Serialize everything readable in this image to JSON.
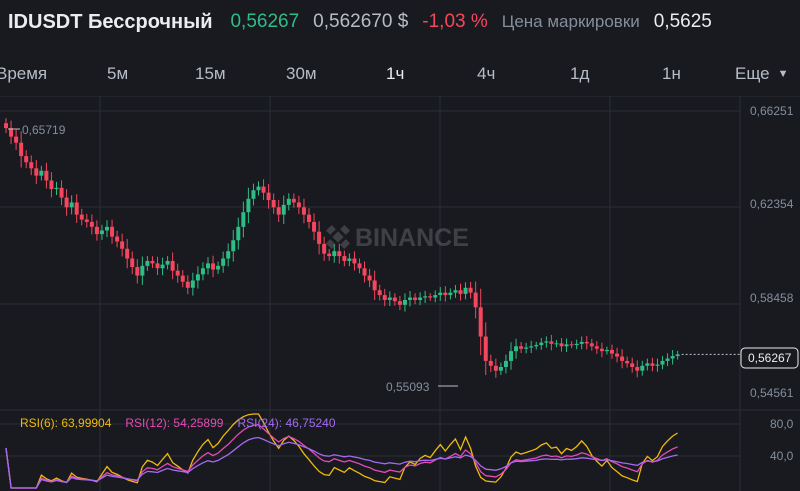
{
  "header": {
    "symbol": "IDUSDT Бессрочный",
    "last_price": "0,56267",
    "usd_price": "0,562670 $",
    "change_pct": "-1,03 %",
    "mark_label": "Цена маркировки",
    "mark_value": "0,5625"
  },
  "tabs": {
    "items": [
      "Время",
      "5м",
      "15м",
      "30м",
      "1ч",
      "4ч",
      "1д",
      "1н"
    ],
    "active": "1ч",
    "more_label": "Еще"
  },
  "colors": {
    "up": "#2ebd85",
    "down": "#f6465d",
    "rsi6": "#f0b90b",
    "rsi12": "#e74ab8",
    "rsi24": "#a46af0"
  },
  "chart_data": {
    "type": "candlestick",
    "price_axis": [
      "0,66251",
      "0,62354",
      "0,58458",
      "0,54561"
    ],
    "price_axis_values": [
      0.66251,
      0.62354,
      0.58458,
      0.54561
    ],
    "current_price": "0,56267",
    "high_marker": "0,65719",
    "low_marker": "0,55093",
    "watermark": "BINANCE",
    "closes": [
      0.6555,
      0.652,
      0.6495,
      0.644,
      0.6415,
      0.639,
      0.636,
      0.638,
      0.634,
      0.6305,
      0.631,
      0.627,
      0.623,
      0.625,
      0.62,
      0.618,
      0.617,
      0.615,
      0.612,
      0.6135,
      0.615,
      0.611,
      0.609,
      0.606,
      0.602,
      0.5985,
      0.595,
      0.599,
      0.601,
      0.6,
      0.598,
      0.5995,
      0.601,
      0.597,
      0.595,
      0.5925,
      0.59,
      0.593,
      0.5955,
      0.598,
      0.6,
      0.5975,
      0.599,
      0.602,
      0.605,
      0.6095,
      0.615,
      0.621,
      0.6265,
      0.63,
      0.6315,
      0.629,
      0.626,
      0.623,
      0.62,
      0.624,
      0.6265,
      0.625,
      0.623,
      0.62,
      0.617,
      0.613,
      0.608,
      0.604,
      0.603,
      0.605,
      0.603,
      0.601,
      0.602,
      0.6,
      0.598,
      0.595,
      0.593,
      0.589,
      0.587,
      0.585,
      0.586,
      0.5845,
      0.583,
      0.585,
      0.586,
      0.585,
      0.586,
      0.5865,
      0.586,
      0.587,
      0.588,
      0.587,
      0.588,
      0.589,
      0.5875,
      0.59,
      0.588,
      0.582,
      0.57,
      0.56,
      0.558,
      0.556,
      0.5575,
      0.56,
      0.564,
      0.566,
      0.565,
      0.5655,
      0.566,
      0.5665,
      0.5675,
      0.568,
      0.567,
      0.5672,
      0.566,
      0.5668,
      0.5665,
      0.567,
      0.5678,
      0.5672,
      0.566,
      0.565,
      0.564,
      0.5645,
      0.563,
      0.5618,
      0.56,
      0.559,
      0.5575,
      0.556,
      0.558,
      0.559,
      0.558,
      0.5585,
      0.56,
      0.561,
      0.562,
      0.5627
    ],
    "rsi_legend": [
      {
        "label": "RSI(6): 63,99904"
      },
      {
        "label": "RSI(12): 54,25899"
      },
      {
        "label": "RSI(24): 46,75240"
      }
    ],
    "rsi_axis": [
      "80,0",
      "40,0"
    ],
    "rsi_axis_values": [
      80,
      40
    ]
  }
}
